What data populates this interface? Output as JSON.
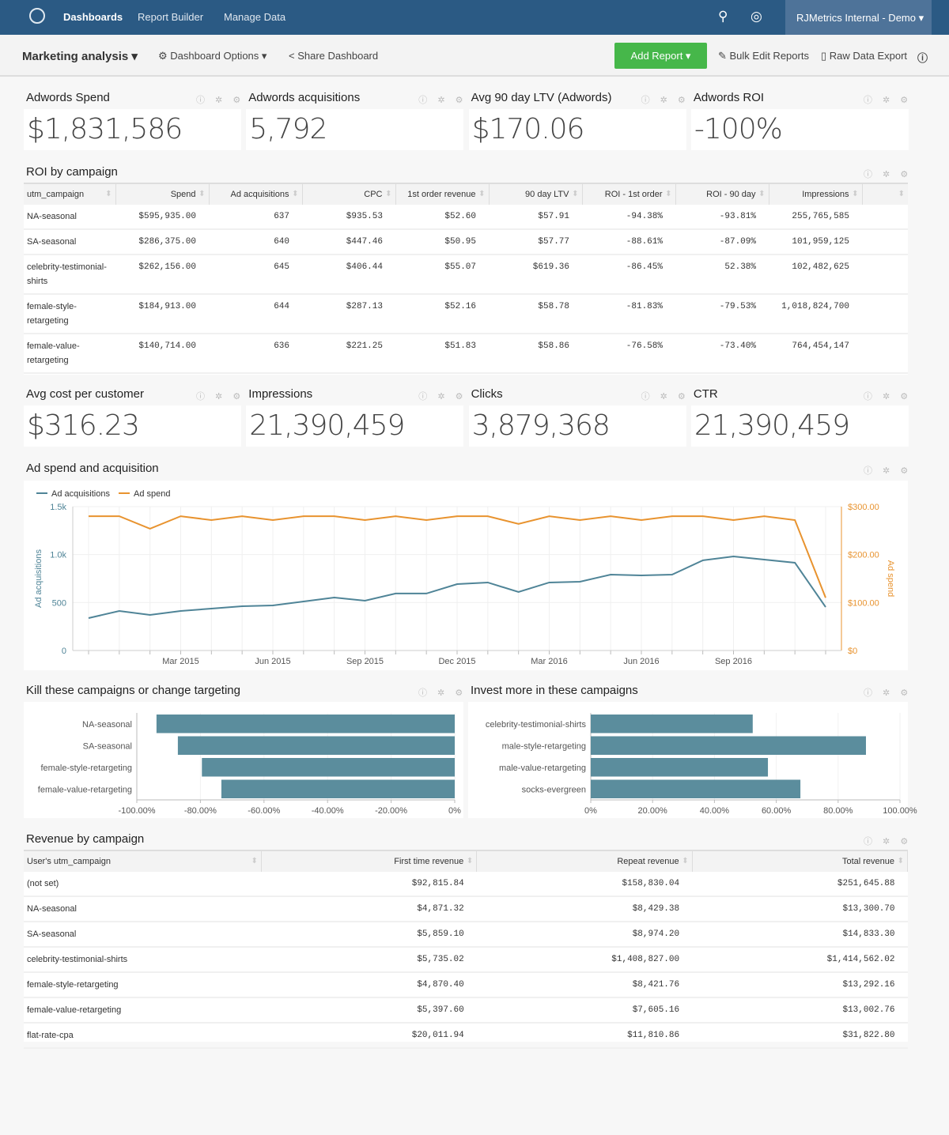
{
  "nav": {
    "items": [
      "Dashboards",
      "Report Builder",
      "Manage Data"
    ],
    "account": "RJMetrics Internal - Demo ▾"
  },
  "subheader": {
    "title": "Marketing analysis ▾",
    "options": "⚙ Dashboard Options ▾",
    "share": "Share Dashboard",
    "add_report": "Add Report ▾",
    "bulk_edit": "Bulk Edit Reports",
    "raw_export": "Raw Data Export"
  },
  "kpis_top": [
    {
      "title": "Adwords Spend",
      "value": "$1,831,586"
    },
    {
      "title": "Adwords acquisitions",
      "value": "5,792"
    },
    {
      "title": "Avg 90 day LTV (Adwords)",
      "value": "$170.06"
    },
    {
      "title": "Adwords ROI",
      "value": "-100%"
    }
  ],
  "roi_table": {
    "title": "ROI by campaign",
    "columns": [
      "utm_campaign",
      "Spend",
      "Ad acquisitions",
      "CPC",
      "1st order revenue",
      "90 day LTV",
      "ROI - 1st order",
      "ROI - 90 day",
      "Impressions"
    ],
    "rows": [
      [
        "NA-seasonal",
        "$595,935.00",
        "637",
        "$935.53",
        "$52.60",
        "$57.91",
        "-94.38%",
        "-93.81%",
        "255,765,585"
      ],
      [
        "SA-seasonal",
        "$286,375.00",
        "640",
        "$447.46",
        "$50.95",
        "$57.77",
        "-88.61%",
        "-87.09%",
        "101,959,125"
      ],
      [
        "celebrity-testimonial-shirts",
        "$262,156.00",
        "645",
        "$406.44",
        "$55.07",
        "$619.36",
        "-86.45%",
        "52.38%",
        "102,482,625"
      ],
      [
        "female-style-retargeting",
        "$184,913.00",
        "644",
        "$287.13",
        "$52.16",
        "$58.78",
        "-81.83%",
        "-79.53%",
        "1,018,824,700"
      ],
      [
        "female-value-retargeting",
        "$140,714.00",
        "636",
        "$221.25",
        "$51.83",
        "$58.86",
        "-76.58%",
        "-73.40%",
        "764,454,147"
      ]
    ]
  },
  "kpis_mid": [
    {
      "title": "Avg cost per customer",
      "value": "$316.23"
    },
    {
      "title": "Impressions",
      "value": "21,390,459"
    },
    {
      "title": "Clicks",
      "value": "3,879,368"
    },
    {
      "title": "CTR",
      "value": "21,390,459"
    }
  ],
  "chart_data": [
    {
      "type": "line",
      "title": "Ad spend and acquisition",
      "x": [
        "Dec 2014",
        "Jan 2015",
        "Feb 2015",
        "Mar 2015",
        "Apr 2015",
        "May 2015",
        "Jun 2015",
        "Jul 2015",
        "Aug 2015",
        "Sep 2015",
        "Oct 2015",
        "Nov 2015",
        "Dec 2015",
        "Jan 2016",
        "Feb 2016",
        "Mar 2016",
        "Apr 2016",
        "May 2016",
        "Jun 2016",
        "Jul 2016",
        "Aug 2016",
        "Sep 2016",
        "Oct 2016",
        "Nov 2016",
        "Dec 2016"
      ],
      "xticks": [
        "Mar 2015",
        "Jun 2015",
        "Sep 2015",
        "Dec 2015",
        "Mar 2016",
        "Jun 2016",
        "Sep 2016"
      ],
      "ylabel": "Ad acquisitions",
      "y2label": "Ad spend",
      "ylim": [
        0,
        1500
      ],
      "y2lim": [
        0,
        300
      ],
      "yticks": [
        "0",
        "500",
        "1.0k",
        "1.5k"
      ],
      "y2ticks": [
        "$0",
        "$100.00",
        "$200.00",
        "$300.00"
      ],
      "legend": "top-left",
      "grid": true,
      "series": [
        {
          "name": "Ad acquisitions",
          "axis": "left",
          "color": "#4f8497",
          "values": [
            338,
            412,
            371,
            412,
            437,
            462,
            470,
            511,
            552,
            519,
            594,
            594,
            692,
            709,
            610,
            709,
            717,
            791,
            783,
            791,
            940,
            981,
            948,
            915,
            453
          ]
        },
        {
          "name": "Ad spend",
          "axis": "right",
          "color": "#e8932f",
          "values": [
            280,
            280,
            254,
            280,
            272,
            280,
            272,
            280,
            280,
            272,
            280,
            272,
            280,
            280,
            264,
            280,
            272,
            280,
            272,
            280,
            280,
            272,
            280,
            272,
            110
          ]
        }
      ]
    },
    {
      "type": "bar",
      "orientation": "horizontal",
      "title": "Kill these campaigns or change targeting",
      "categories": [
        "NA-seasonal",
        "SA-seasonal",
        "female-style-retargeting",
        "female-value-retargeting"
      ],
      "values": [
        -93.81,
        -87.09,
        -79.53,
        -73.4
      ],
      "xlim": [
        -100,
        0
      ],
      "xticks": [
        "-100.00%",
        "-80.00%",
        "-60.00%",
        "-40.00%",
        "-20.00%",
        "0%"
      ],
      "color": "#5b8d9d"
    },
    {
      "type": "bar",
      "orientation": "horizontal",
      "title": "Invest more in these campaigns",
      "categories": [
        "celebrity-testimonial-shirts",
        "male-style-retargeting",
        "male-value-retargeting",
        "socks-evergreen"
      ],
      "values": [
        52.38,
        89.0,
        57.3,
        67.8
      ],
      "xlim": [
        0,
        100
      ],
      "xticks": [
        "0%",
        "20.00%",
        "40.00%",
        "60.00%",
        "80.00%",
        "100.00%"
      ],
      "color": "#5b8d9d"
    }
  ],
  "revenue_table": {
    "title": "Revenue by campaign",
    "columns": [
      "User's utm_campaign",
      "First time revenue",
      "Repeat revenue",
      "Total revenue"
    ],
    "rows": [
      [
        "(not set)",
        "$92,815.84",
        "$158,830.04",
        "$251,645.88"
      ],
      [
        "NA-seasonal",
        "$4,871.32",
        "$8,429.38",
        "$13,300.70"
      ],
      [
        "SA-seasonal",
        "$5,859.10",
        "$8,974.20",
        "$14,833.30"
      ],
      [
        "celebrity-testimonial-shirts",
        "$5,735.02",
        "$1,408,827.00",
        "$1,414,562.02"
      ],
      [
        "female-style-retargeting",
        "$4,870.40",
        "$8,421.76",
        "$13,292.16"
      ],
      [
        "female-value-retargeting",
        "$5,397.60",
        "$7,605.16",
        "$13,002.76"
      ],
      [
        "flat-rate-cpa",
        "$20,011.94",
        "$11,810.86",
        "$31,822.80"
      ]
    ]
  },
  "icons": {
    "panel": "ⓘ ✲ ⚙"
  }
}
